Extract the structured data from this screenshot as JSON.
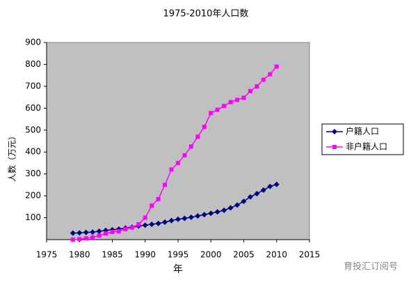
{
  "chart_data": {
    "type": "line",
    "title": "1975-2010年人口数",
    "x_label": "年",
    "y_label": "人数（万元）",
    "x": [
      1979,
      1980,
      1981,
      1982,
      1983,
      1984,
      1985,
      1986,
      1987,
      1988,
      1989,
      1990,
      1991,
      1992,
      1993,
      1994,
      1995,
      1996,
      1997,
      1998,
      1999,
      2000,
      2001,
      2002,
      2003,
      2004,
      2005,
      2006,
      2007,
      2008,
      2009,
      2010
    ],
    "series": [
      {
        "name": "户籍人口",
        "color": "#000080",
        "marker": "diamond",
        "values": [
          30,
          31,
          33,
          34,
          38,
          42,
          45,
          48,
          53,
          57,
          62,
          66,
          70,
          74,
          80,
          87,
          93,
          97,
          102,
          108,
          114,
          120,
          127,
          134,
          145,
          158,
          175,
          195,
          210,
          226,
          243,
          252
        ]
      },
      {
        "name": "非户籍人口",
        "color": "#ff00ff",
        "marker": "square",
        "values": [
          0,
          2,
          6,
          10,
          18,
          28,
          35,
          38,
          48,
          55,
          70,
          100,
          155,
          185,
          250,
          320,
          350,
          385,
          425,
          470,
          515,
          578,
          593,
          610,
          628,
          638,
          648,
          678,
          700,
          730,
          755,
          790
        ]
      }
    ],
    "xlim": [
      1975,
      2015
    ],
    "xticks": [
      1975,
      1980,
      1985,
      1990,
      1995,
      2000,
      2005,
      2010,
      2015
    ],
    "ylim": [
      0,
      900
    ],
    "yticks": [
      100,
      200,
      300,
      400,
      500,
      600,
      700,
      800,
      900
    ],
    "grid": false,
    "legend": "right",
    "plot_background": "#c0c0c0"
  },
  "watermark": "育投汇订阅号"
}
